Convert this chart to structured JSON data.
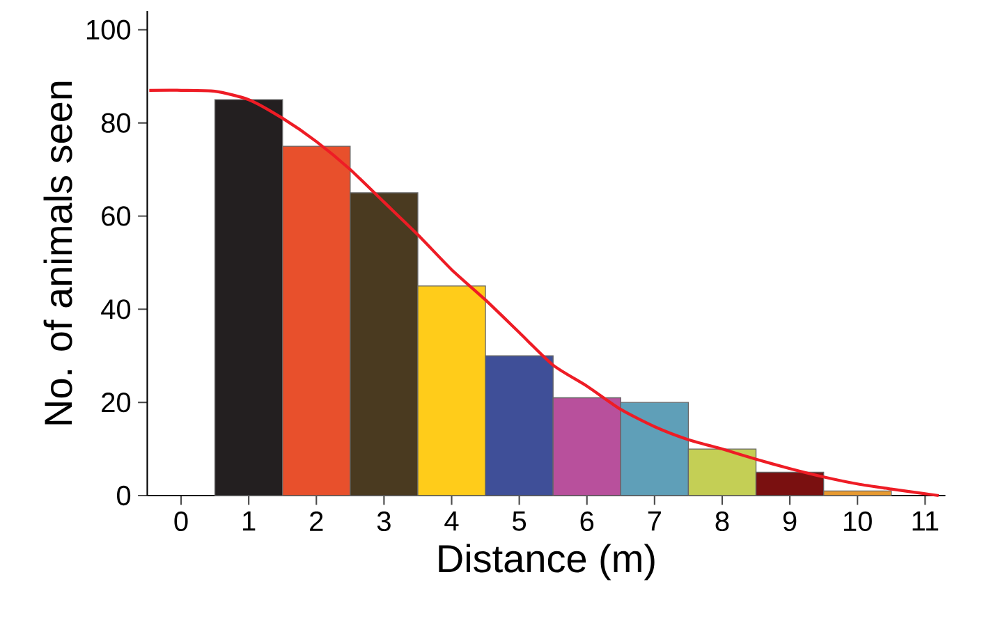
{
  "chart_data": {
    "type": "bar",
    "xlabel": "Distance (m)",
    "ylabel": "No. of animals seen",
    "xlim": [
      -0.5,
      11.3
    ],
    "ylim": [
      0,
      104
    ],
    "xticks": [
      0,
      1,
      2,
      3,
      4,
      5,
      6,
      7,
      8,
      9,
      10,
      11
    ],
    "yticks": [
      0,
      20,
      40,
      60,
      80,
      100
    ],
    "series": [
      {
        "x": [
          1,
          2,
          3,
          4,
          5,
          6,
          7,
          8,
          9,
          10
        ],
        "values": [
          85,
          75,
          65,
          45,
          30,
          21,
          20,
          10,
          5,
          1
        ],
        "colors": [
          "#231f20",
          "#e8502c",
          "#4a3a20",
          "#ffcc1a",
          "#3f4f98",
          "#b8509c",
          "#5f9fb8",
          "#c4cf55",
          "#7a1010",
          "#e89a30"
        ]
      },
      {
        "type": "line",
        "color": "#ee1c25",
        "marker": "none",
        "line_style": "solid",
        "x": [
          -0.47,
          0,
          0.5,
          1,
          1.5,
          2,
          2.5,
          3,
          3.5,
          4,
          4.5,
          5,
          5.5,
          6,
          6.5,
          7,
          7.5,
          8,
          8.5,
          9,
          9.5,
          10,
          10.5,
          11,
          11.2
        ],
        "values": [
          87,
          87,
          86.8,
          85,
          81,
          76,
          70,
          63,
          56,
          48.5,
          42,
          35,
          28,
          23.5,
          18.5,
          14.8,
          12,
          10,
          7.8,
          5.8,
          4,
          2.5,
          1.4,
          0.4,
          0
        ]
      }
    ]
  }
}
